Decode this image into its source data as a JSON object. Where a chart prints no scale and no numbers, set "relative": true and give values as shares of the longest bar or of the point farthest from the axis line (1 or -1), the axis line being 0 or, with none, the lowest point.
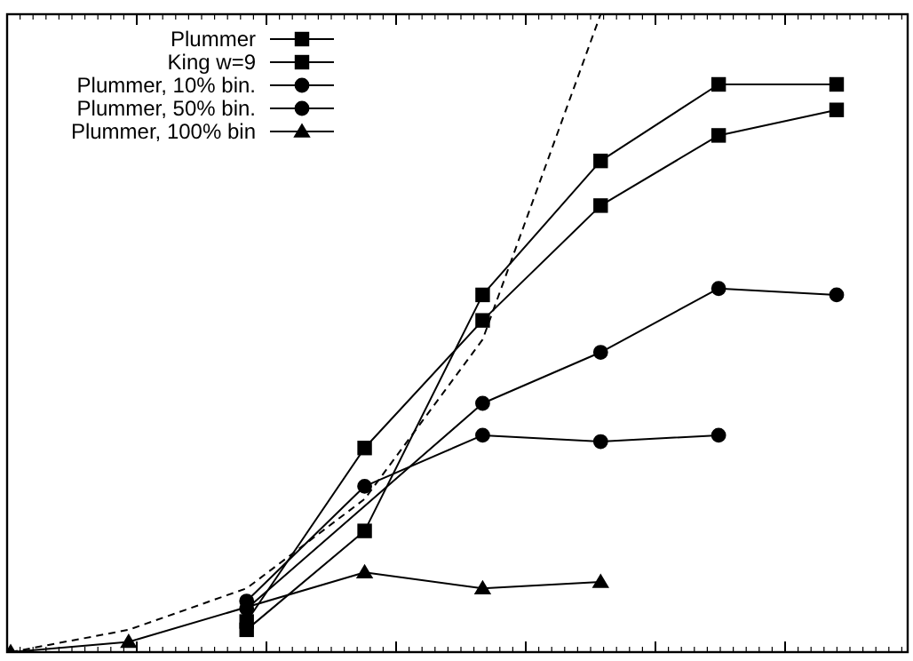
{
  "chart_data": {
    "type": "line",
    "relative": true,
    "categories": [
      null,
      null,
      null,
      null,
      null,
      null,
      null,
      null
    ],
    "legend": "top left",
    "series": [
      {
        "name": "Plummer",
        "color": "#000000",
        "marker": "square",
        "values": [
          null,
          null,
          0.048,
          0.32,
          0.52,
          0.7,
          0.81,
          0.85
        ]
      },
      {
        "name": "King w=9",
        "color": "#000000",
        "marker": "square",
        "values": [
          null,
          null,
          0.035,
          0.19,
          0.56,
          0.77,
          0.89,
          0.89
        ]
      },
      {
        "name": "Plummer, 10% bin.",
        "color": "#000000",
        "marker": "circle",
        "values": [
          null,
          null,
          0.068,
          null,
          0.39,
          0.47,
          0.57,
          0.56
        ]
      },
      {
        "name": "Plummer, 50% bin.",
        "color": "#000000",
        "marker": "circle",
        "values": [
          null,
          null,
          0.08,
          0.26,
          0.34,
          0.33,
          0.34,
          null
        ]
      },
      {
        "name": "Plummer, 100% bin",
        "color": "#000000",
        "marker": "triangle",
        "values": [
          0,
          0.016,
          null,
          0.125,
          0.1,
          0.11,
          null,
          null
        ]
      },
      {
        "color": "#000000",
        "marker": "none",
        "line_style": "dashed",
        "values": [
          0,
          0.035,
          0.1,
          0.24,
          0.49,
          1,
          null,
          null
        ]
      }
    ]
  }
}
